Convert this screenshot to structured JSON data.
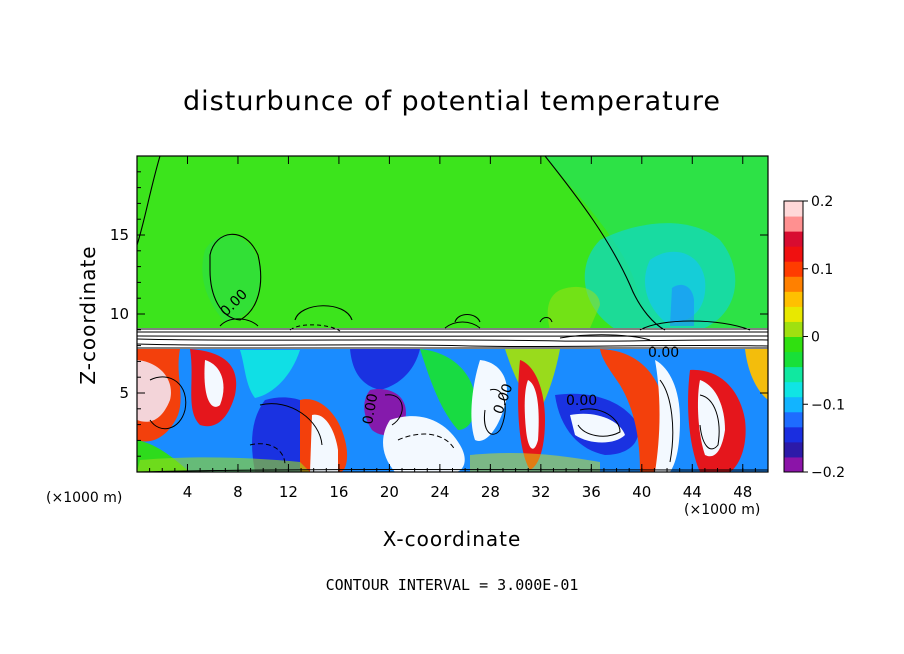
{
  "title": "disturbunce of potential temperature",
  "footer": "CONTOUR INTERVAL = 3.000E-01",
  "chart_data": {
    "type": "heatmap",
    "title": "disturbunce of potential temperature",
    "xlabel": "X-coordinate",
    "ylabel": "Z-coordinate",
    "x_unit": "(×1000 m)",
    "x_unit_right": "(×1000 m)",
    "xlim": [
      0,
      50
    ],
    "ylim": [
      0,
      20
    ],
    "x_ticks": [
      4,
      8,
      12,
      16,
      20,
      24,
      28,
      32,
      36,
      40,
      44,
      48
    ],
    "y_ticks": [
      5,
      10,
      15
    ],
    "colorbar": {
      "range": [
        -0.2,
        0.2
      ],
      "ticks": [
        0.2,
        0.1,
        0,
        -0.1,
        -0.2
      ],
      "tick_labels": [
        "0.2",
        "0.1",
        "0",
        "−0.1",
        "−0.2"
      ],
      "colors": [
        "#8b14a8",
        "#2c1aa8",
        "#1a2ee0",
        "#1e6cff",
        "#12b4ff",
        "#10e4e4",
        "#10e8a0",
        "#18e038",
        "#30e010",
        "#a0e010",
        "#e8e800",
        "#ffc000",
        "#ff8000",
        "#ff3c00",
        "#f01010",
        "#d80c30",
        "#ff9090",
        "#ffd8d8"
      ]
    },
    "contour_labels": [
      "0.00",
      "0.00",
      "0.00",
      "0.00",
      "0.00"
    ]
  }
}
